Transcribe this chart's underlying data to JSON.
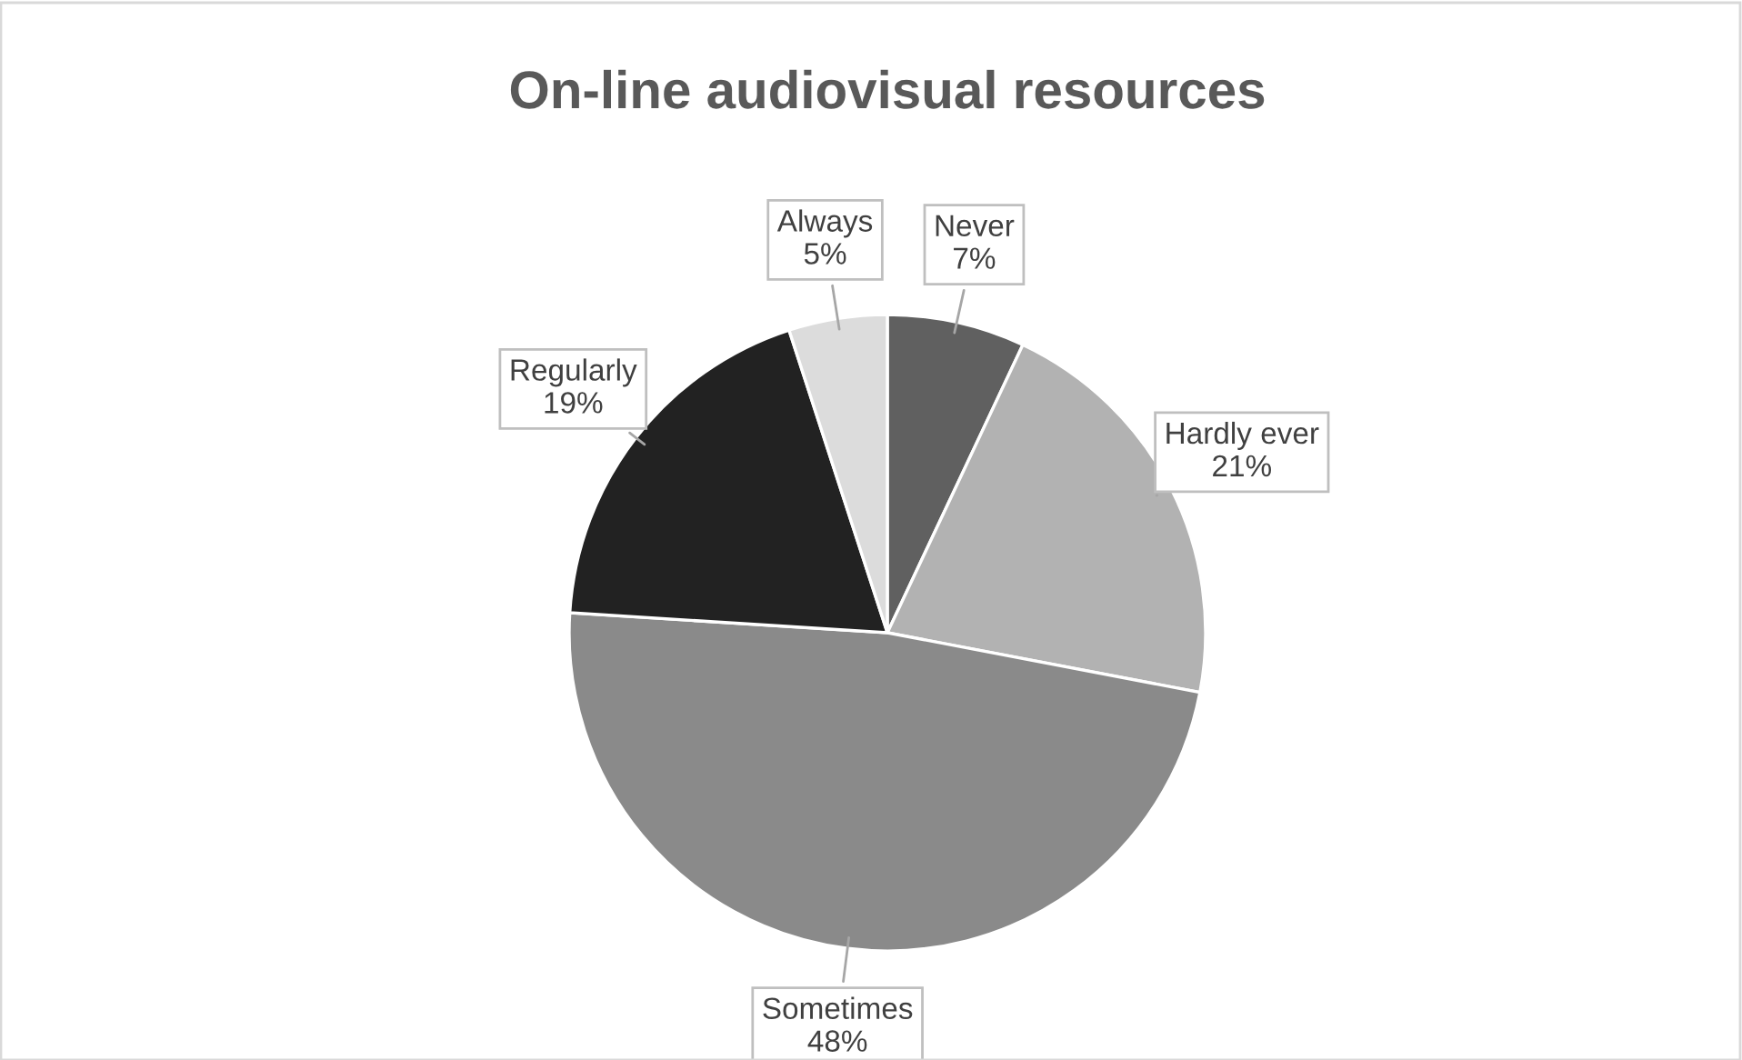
{
  "chart_data": {
    "type": "pie",
    "title": "On-line audiovisual resources",
    "categories": [
      "Never",
      "Hardly ever",
      "Sometimes",
      "Regularly",
      "Always"
    ],
    "values": [
      7,
      21,
      48,
      19,
      5
    ],
    "value_labels": [
      "7%",
      "21%",
      "48%",
      "19%",
      "5%"
    ],
    "colors": [
      "#606060",
      "#b2b2b2",
      "#8a8a8a",
      "#222222",
      "#dcdcdc"
    ],
    "legend": false
  }
}
